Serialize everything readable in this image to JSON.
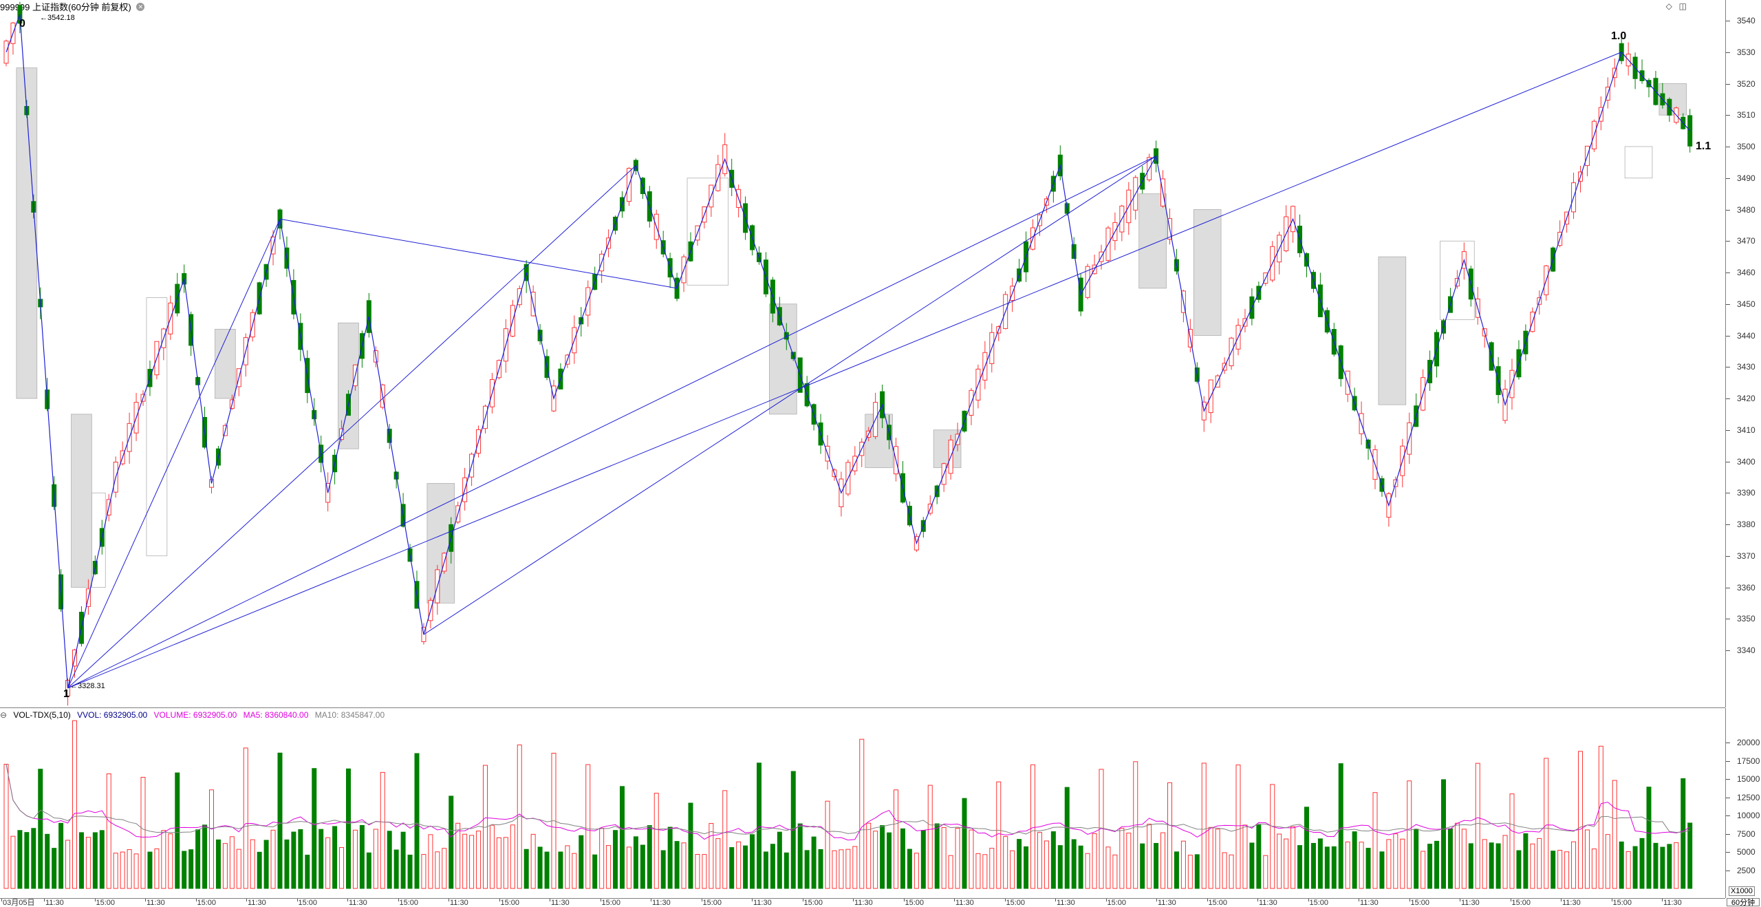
{
  "header": {
    "title": "999999 上证指数(60分钟 前复权)",
    "icons": [
      "diamond-icon",
      "window-toggle-icon"
    ]
  },
  "wave_labels": {
    "start": "0",
    "low": "1",
    "peak": "1.0",
    "end": "1.1"
  },
  "price_notes": {
    "high": "3542.18",
    "low": "3328.31"
  },
  "price_axis": {
    "ticks": [
      "3540",
      "3530",
      "3520",
      "3510",
      "3500",
      "3490",
      "3480",
      "3470",
      "3460",
      "3450",
      "3440",
      "3430",
      "3420",
      "3410",
      "3400",
      "3390",
      "3380",
      "3370",
      "3360",
      "3350",
      "3340"
    ]
  },
  "volume_header": {
    "indicator": "VOL-TDX(5,10)",
    "vvol": "VVOL: 6932905.00",
    "volume": "VOLUME: 6932905.00",
    "ma5": "MA5: 8360840.00",
    "ma10": "MA10: 8345847.00"
  },
  "volume_axis": {
    "ticks": [
      "20000",
      "17500",
      "15000",
      "12500",
      "10000",
      "7500",
      "5000",
      "2500"
    ],
    "unit": "X1000"
  },
  "time_axis": {
    "labels": [
      "03月05日",
      "11:30",
      "15:00",
      "11:30",
      "15:00",
      "11:30",
      "15:00",
      "11:30",
      "15:00",
      "11:30",
      "15:00",
      "11:30",
      "15:00",
      "11:30",
      "15:00",
      "11:30",
      "15:00",
      "11:30",
      "15:00",
      "11:30",
      "15:00",
      "11:30",
      "15:00",
      "11:30",
      "15:00",
      "11:30",
      "15:00",
      "11:30",
      "15:00",
      "11:30",
      "15:00",
      "11:30",
      "15:00",
      "11:30"
    ]
  },
  "period": "60分钟",
  "colors": {
    "up": "#ff3232",
    "down": "#008000",
    "wave": "#1f1fd6",
    "box": "#d9d9d9",
    "ma5": "#e000e0",
    "ma10": "#808080"
  },
  "chart_data": {
    "type": "candlestick",
    "price_range": [
      3328.31,
      3542.18
    ],
    "volume_range": [
      0,
      20000
    ]
  }
}
